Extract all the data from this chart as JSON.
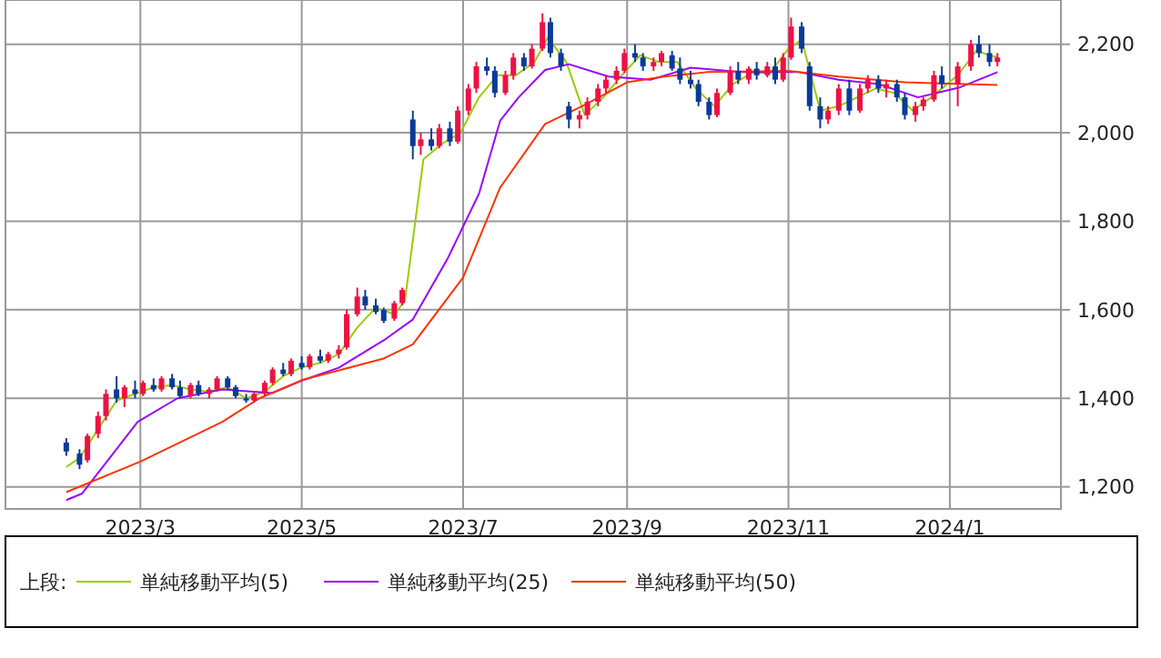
{
  "chart_data": {
    "type": "candlestick",
    "legend_title": "上段:",
    "legend": "bottom",
    "grid": true,
    "xlim": [
      "2023-01-09",
      "2024-02-12"
    ],
    "ylim": [
      1150,
      2300
    ],
    "xticks": [
      {
        "value": "2023-03-01",
        "label": "2023/3"
      },
      {
        "value": "2023-05-01",
        "label": "2023/5"
      },
      {
        "value": "2023-07-01",
        "label": "2023/7"
      },
      {
        "value": "2023-09-01",
        "label": "2023/9"
      },
      {
        "value": "2023-11-01",
        "label": "2023/11"
      },
      {
        "value": "2024-01-01",
        "label": "2024/1"
      }
    ],
    "yticks": [
      {
        "value": 1200,
        "label": "1,200"
      },
      {
        "value": 1400,
        "label": "1,400"
      },
      {
        "value": 1600,
        "label": "1,600"
      },
      {
        "value": 1800,
        "label": "1,800"
      },
      {
        "value": 2000,
        "label": "2,000"
      },
      {
        "value": 2200,
        "label": "2,200"
      }
    ],
    "series": [
      {
        "type": "candlestick",
        "x": [
          "2023-02-01",
          "2023-02-06",
          "2023-02-09",
          "2023-02-13",
          "2023-02-16",
          "2023-02-20",
          "2023-02-23",
          "2023-02-27",
          "2023-03-02",
          "2023-03-06",
          "2023-03-09",
          "2023-03-13",
          "2023-03-16",
          "2023-03-20",
          "2023-03-23",
          "2023-03-27",
          "2023-03-30",
          "2023-04-03",
          "2023-04-06",
          "2023-04-10",
          "2023-04-13",
          "2023-04-17",
          "2023-04-20",
          "2023-04-24",
          "2023-04-27",
          "2023-05-01",
          "2023-05-04",
          "2023-05-08",
          "2023-05-11",
          "2023-05-15",
          "2023-05-18",
          "2023-05-22",
          "2023-05-25",
          "2023-05-29",
          "2023-06-01",
          "2023-06-05",
          "2023-06-08",
          "2023-06-12",
          "2023-06-15",
          "2023-06-19",
          "2023-06-22",
          "2023-06-26",
          "2023-06-29",
          "2023-07-03",
          "2023-07-06",
          "2023-07-10",
          "2023-07-13",
          "2023-07-17",
          "2023-07-20",
          "2023-07-24",
          "2023-07-27",
          "2023-07-31",
          "2023-08-03",
          "2023-08-07",
          "2023-08-10",
          "2023-08-14",
          "2023-08-17",
          "2023-08-21",
          "2023-08-24",
          "2023-08-28",
          "2023-08-31",
          "2023-09-04",
          "2023-09-07",
          "2023-09-11",
          "2023-09-14",
          "2023-09-18",
          "2023-09-21",
          "2023-09-25",
          "2023-09-28",
          "2023-10-02",
          "2023-10-05",
          "2023-10-10",
          "2023-10-13",
          "2023-10-17",
          "2023-10-20",
          "2023-10-24",
          "2023-10-27",
          "2023-10-30",
          "2023-11-02",
          "2023-11-06",
          "2023-11-09",
          "2023-11-13",
          "2023-11-16",
          "2023-11-20",
          "2023-11-24",
          "2023-11-28",
          "2023-12-01",
          "2023-12-05",
          "2023-12-08",
          "2023-12-12",
          "2023-12-15",
          "2023-12-19",
          "2023-12-22",
          "2023-12-26",
          "2023-12-29",
          "2024-01-04",
          "2024-01-09",
          "2024-01-12",
          "2024-01-16",
          "2024-01-19"
        ],
        "ohlc": [
          [
            1300,
            1310,
            1270,
            1280
          ],
          [
            1275,
            1285,
            1240,
            1250
          ],
          [
            1260,
            1320,
            1255,
            1315
          ],
          [
            1320,
            1370,
            1310,
            1360
          ],
          [
            1360,
            1420,
            1350,
            1410
          ],
          [
            1420,
            1450,
            1390,
            1400
          ],
          [
            1400,
            1430,
            1380,
            1425
          ],
          [
            1420,
            1440,
            1400,
            1410
          ],
          [
            1410,
            1440,
            1405,
            1435
          ],
          [
            1430,
            1445,
            1415,
            1420
          ],
          [
            1420,
            1450,
            1415,
            1445
          ],
          [
            1445,
            1455,
            1420,
            1425
          ],
          [
            1425,
            1440,
            1400,
            1405
          ],
          [
            1405,
            1435,
            1400,
            1430
          ],
          [
            1430,
            1440,
            1405,
            1410
          ],
          [
            1410,
            1425,
            1400,
            1420
          ],
          [
            1420,
            1450,
            1415,
            1445
          ],
          [
            1445,
            1450,
            1420,
            1425
          ],
          [
            1425,
            1430,
            1400,
            1405
          ],
          [
            1400,
            1410,
            1390,
            1395
          ],
          [
            1395,
            1415,
            1390,
            1410
          ],
          [
            1410,
            1440,
            1405,
            1435
          ],
          [
            1435,
            1470,
            1430,
            1465
          ],
          [
            1465,
            1480,
            1450,
            1455
          ],
          [
            1455,
            1490,
            1450,
            1485
          ],
          [
            1480,
            1495,
            1465,
            1470
          ],
          [
            1470,
            1500,
            1465,
            1495
          ],
          [
            1495,
            1510,
            1480,
            1485
          ],
          [
            1485,
            1505,
            1480,
            1500
          ],
          [
            1500,
            1520,
            1490,
            1510
          ],
          [
            1515,
            1600,
            1510,
            1590
          ],
          [
            1590,
            1650,
            1585,
            1630
          ],
          [
            1630,
            1645,
            1600,
            1610
          ],
          [
            1610,
            1625,
            1590,
            1595
          ],
          [
            1600,
            1605,
            1570,
            1575
          ],
          [
            1580,
            1620,
            1575,
            1615
          ],
          [
            1615,
            1650,
            1610,
            1645
          ],
          [
            2030,
            2050,
            1940,
            1970
          ],
          [
            1970,
            2000,
            1950,
            1985
          ],
          [
            1985,
            2010,
            1960,
            1970
          ],
          [
            1970,
            2020,
            1965,
            2010
          ],
          [
            2010,
            2025,
            1970,
            1980
          ],
          [
            1980,
            2060,
            1975,
            2050
          ],
          [
            2050,
            2110,
            2040,
            2100
          ],
          [
            2100,
            2160,
            2090,
            2150
          ],
          [
            2150,
            2170,
            2130,
            2140
          ],
          [
            2140,
            2150,
            2080,
            2090
          ],
          [
            2090,
            2140,
            2085,
            2130
          ],
          [
            2130,
            2180,
            2120,
            2170
          ],
          [
            2170,
            2180,
            2140,
            2150
          ],
          [
            2150,
            2200,
            2145,
            2190
          ],
          [
            2190,
            2270,
            2185,
            2250
          ],
          [
            2250,
            2260,
            2170,
            2180
          ],
          [
            2180,
            2190,
            2140,
            2150
          ],
          [
            2060,
            2070,
            2010,
            2030
          ],
          [
            2030,
            2050,
            2010,
            2040
          ],
          [
            2040,
            2080,
            2030,
            2070
          ],
          [
            2070,
            2110,
            2060,
            2100
          ],
          [
            2100,
            2130,
            2090,
            2120
          ],
          [
            2120,
            2150,
            2110,
            2140
          ],
          [
            2140,
            2190,
            2135,
            2180
          ],
          [
            2180,
            2200,
            2160,
            2170
          ],
          [
            2170,
            2180,
            2140,
            2150
          ],
          [
            2150,
            2170,
            2140,
            2160
          ],
          [
            2160,
            2185,
            2150,
            2180
          ],
          [
            2175,
            2185,
            2140,
            2145
          ],
          [
            2145,
            2170,
            2110,
            2120
          ],
          [
            2120,
            2140,
            2100,
            2110
          ],
          [
            2110,
            2120,
            2060,
            2070
          ],
          [
            2070,
            2080,
            2030,
            2040
          ],
          [
            2040,
            2100,
            2035,
            2090
          ],
          [
            2090,
            2150,
            2085,
            2140
          ],
          [
            2140,
            2160,
            2110,
            2120
          ],
          [
            2120,
            2150,
            2110,
            2145
          ],
          [
            2145,
            2160,
            2120,
            2130
          ],
          [
            2130,
            2160,
            2125,
            2150
          ],
          [
            2150,
            2170,
            2110,
            2120
          ],
          [
            2120,
            2180,
            2115,
            2170
          ],
          [
            2170,
            2260,
            2165,
            2240
          ],
          [
            2240,
            2250,
            2180,
            2190
          ],
          [
            2150,
            2160,
            2050,
            2060
          ],
          [
            2060,
            2080,
            2010,
            2030
          ],
          [
            2030,
            2060,
            2020,
            2050
          ],
          [
            2050,
            2110,
            2040,
            2100
          ],
          [
            2100,
            2120,
            2040,
            2050
          ],
          [
            2050,
            2110,
            2045,
            2100
          ],
          [
            2100,
            2130,
            2090,
            2120
          ],
          [
            2120,
            2130,
            2090,
            2100
          ],
          [
            2100,
            2120,
            2080,
            2110
          ],
          [
            2110,
            2120,
            2070,
            2080
          ],
          [
            2080,
            2090,
            2030,
            2040
          ],
          [
            2040,
            2070,
            2025,
            2060
          ],
          [
            2060,
            2080,
            2050,
            2075
          ],
          [
            2075,
            2140,
            2070,
            2130
          ],
          [
            2130,
            2150,
            2100,
            2110
          ],
          [
            2110,
            2160,
            2060,
            2150
          ],
          [
            2150,
            2210,
            2140,
            2200
          ],
          [
            2200,
            2220,
            2170,
            2180
          ],
          [
            2180,
            2200,
            2150,
            2160
          ],
          [
            2160,
            2180,
            2150,
            2170
          ]
        ],
        "colors": [
          "#0a3a99",
          "#0a3a99",
          "#ee1144",
          "#ee1144",
          "#ee1144",
          "#0a3a99",
          "#ee1144",
          "#0a3a99",
          "#ee1144",
          "#0a3a99",
          "#ee1144",
          "#0a3a99",
          "#0a3a99",
          "#ee1144",
          "#0a3a99",
          "#ee1144",
          "#ee1144",
          "#0a3a99",
          "#0a3a99",
          "#0a3a99",
          "#ee1144",
          "#ee1144",
          "#ee1144",
          "#0a3a99",
          "#ee1144",
          "#0a3a99",
          "#ee1144",
          "#0a3a99",
          "#ee1144",
          "#ee1144",
          "#ee1144",
          "#ee1144",
          "#0a3a99",
          "#0a3a99",
          "#0a3a99",
          "#ee1144",
          "#ee1144",
          "#0a3a99",
          "#ee1144",
          "#0a3a99",
          "#ee1144",
          "#0a3a99",
          "#ee1144",
          "#ee1144",
          "#ee1144",
          "#0a3a99",
          "#0a3a99",
          "#ee1144",
          "#ee1144",
          "#0a3a99",
          "#ee1144",
          "#ee1144",
          "#0a3a99",
          "#0a3a99",
          "#0a3a99",
          "#ee1144",
          "#ee1144",
          "#ee1144",
          "#ee1144",
          "#ee1144",
          "#ee1144",
          "#0a3a99",
          "#0a3a99",
          "#ee1144",
          "#ee1144",
          "#0a3a99",
          "#0a3a99",
          "#0a3a99",
          "#0a3a99",
          "#0a3a99",
          "#ee1144",
          "#ee1144",
          "#0a3a99",
          "#ee1144",
          "#0a3a99",
          "#ee1144",
          "#0a3a99",
          "#ee1144",
          "#ee1144",
          "#0a3a99",
          "#0a3a99",
          "#0a3a99",
          "#ee1144",
          "#ee1144",
          "#0a3a99",
          "#ee1144",
          "#ee1144",
          "#0a3a99",
          "#ee1144",
          "#0a3a99",
          "#0a3a99",
          "#ee1144",
          "#ee1144",
          "#ee1144",
          "#0a3a99",
          "#ee1144",
          "#ee1144",
          "#0a3a99",
          "#0a3a99",
          "#ee1144"
        ]
      },
      {
        "type": "line",
        "name": "単純移動平均(5)",
        "color": "#99cc00",
        "x": [
          "2023-02-01",
          "2023-02-06",
          "2023-02-13",
          "2023-02-20",
          "2023-02-27",
          "2023-03-06",
          "2023-03-13",
          "2023-03-20",
          "2023-03-27",
          "2023-04-03",
          "2023-04-10",
          "2023-04-17",
          "2023-04-24",
          "2023-05-01",
          "2023-05-08",
          "2023-05-15",
          "2023-05-22",
          "2023-05-29",
          "2023-06-05",
          "2023-06-09",
          "2023-06-16",
          "2023-06-23",
          "2023-06-30",
          "2023-07-07",
          "2023-07-14",
          "2023-07-21",
          "2023-07-28",
          "2023-08-02",
          "2023-08-09",
          "2023-08-16",
          "2023-08-23",
          "2023-08-30",
          "2023-09-06",
          "2023-09-13",
          "2023-09-20",
          "2023-09-27",
          "2023-10-04",
          "2023-10-11",
          "2023-10-18",
          "2023-10-25",
          "2023-11-01",
          "2023-11-06",
          "2023-11-13",
          "2023-11-20",
          "2023-11-27",
          "2023-12-04",
          "2023-12-11",
          "2023-12-18",
          "2023-12-25",
          "2024-01-04",
          "2024-01-11",
          "2024-01-19"
        ],
        "values": [
          1245,
          1265,
          1330,
          1395,
          1410,
          1425,
          1430,
          1420,
          1415,
          1425,
          1400,
          1415,
          1450,
          1470,
          1480,
          1500,
          1560,
          1605,
          1590,
          1620,
          1940,
          1975,
          2000,
          2080,
          2130,
          2130,
          2160,
          2215,
          2160,
          2040,
          2080,
          2130,
          2175,
          2160,
          2160,
          2100,
          2060,
          2110,
          2135,
          2135,
          2190,
          2210,
          2050,
          2060,
          2080,
          2100,
          2090,
          2050,
          2080,
          2130,
          2185,
          2170
        ]
      },
      {
        "type": "line",
        "name": "単純移動平均(25)",
        "color": "#9900ff",
        "x": [
          "2023-02-01",
          "2023-02-07",
          "2023-02-28",
          "2023-03-15",
          "2023-04-01",
          "2023-04-20",
          "2023-05-01",
          "2023-05-15",
          "2023-06-01",
          "2023-06-12",
          "2023-06-25",
          "2023-07-07",
          "2023-07-15",
          "2023-07-22",
          "2023-08-01",
          "2023-08-10",
          "2023-08-25",
          "2023-09-10",
          "2023-09-25",
          "2023-10-15",
          "2023-11-05",
          "2023-11-20",
          "2023-12-05",
          "2023-12-20",
          "2024-01-05",
          "2024-01-19"
        ],
        "values": [
          1170,
          1185,
          1347,
          1400,
          1420,
          1412,
          1440,
          1469,
          1531,
          1578,
          1714,
          1862,
          2027,
          2080,
          2142,
          2155,
          2127,
          2120,
          2147,
          2137,
          2137,
          2120,
          2110,
          2080,
          2103,
          2137
        ]
      },
      {
        "type": "line",
        "name": "単純移動平均(50)",
        "color": "#ff3300",
        "x": [
          "2023-02-01",
          "2023-03-01",
          "2023-04-01",
          "2023-04-15",
          "2023-05-01",
          "2023-06-01",
          "2023-06-12",
          "2023-07-01",
          "2023-07-15",
          "2023-08-01",
          "2023-08-15",
          "2023-09-01",
          "2023-09-15",
          "2023-10-01",
          "2023-11-01",
          "2023-11-20",
          "2023-12-15",
          "2024-01-19"
        ],
        "values": [
          1188,
          1257,
          1347,
          1400,
          1441,
          1490,
          1522,
          1673,
          1876,
          2020,
          2060,
          2114,
          2127,
          2137,
          2140,
          2127,
          2114,
          2108
        ]
      }
    ]
  }
}
